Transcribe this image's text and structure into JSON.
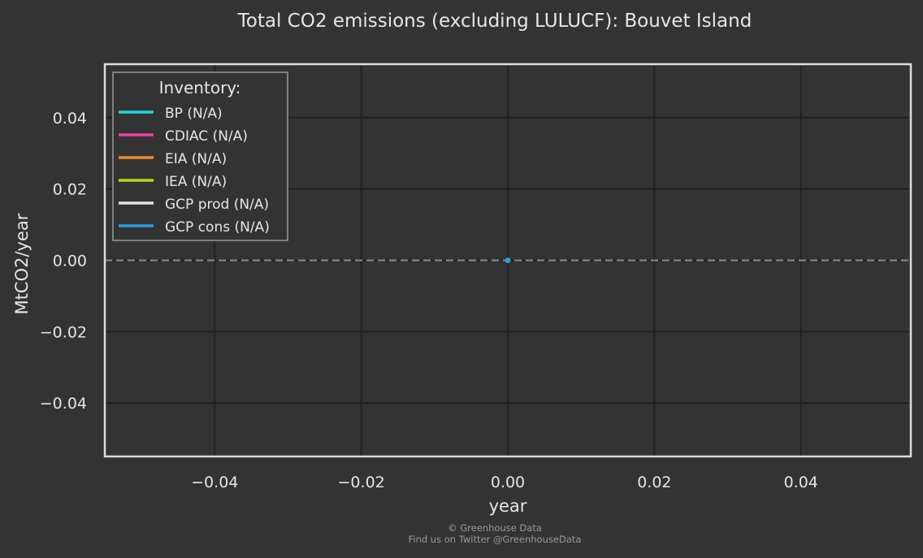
{
  "chart_data": {
    "type": "line",
    "title": "Total CO2 emissions (excluding LULUCF): Bouvet Island",
    "xlabel": "year",
    "ylabel": "MtCO2/year",
    "xlim": [
      -0.055,
      0.055
    ],
    "ylim": [
      -0.055,
      0.055
    ],
    "x_ticks": [
      -0.04,
      -0.02,
      0.0,
      0.02,
      0.04
    ],
    "x_tick_labels": [
      "−0.04",
      "−0.02",
      "0.00",
      "0.02",
      "0.04"
    ],
    "y_ticks": [
      0.04,
      0.02,
      0.0,
      -0.02,
      -0.04
    ],
    "y_tick_labels": [
      "0.04",
      "0.02",
      "0.00",
      "−0.02",
      "−0.04"
    ],
    "grid": true,
    "reference_line": {
      "y": 0,
      "style": "dashed",
      "color": "#8a8a8a"
    },
    "legend": {
      "title": "Inventory:",
      "placement": "top-left",
      "entries": [
        {
          "label": "BP (N/A)",
          "color": "#1fd5e0"
        },
        {
          "label": "CDIAC (N/A)",
          "color": "#f03fa0"
        },
        {
          "label": "EIA (N/A)",
          "color": "#f08a2a"
        },
        {
          "label": "IEA (N/A)",
          "color": "#b5d624"
        },
        {
          "label": "GCP prod (N/A)",
          "color": "#e6e6e6"
        },
        {
          "label": "GCP cons (N/A)",
          "color": "#2a9ee0"
        }
      ]
    },
    "series": [
      {
        "x": [
          0
        ],
        "y": [
          0
        ],
        "color": "#2a9ee0"
      }
    ]
  },
  "footer": {
    "line1": "© Greenhouse Data",
    "line2": "Find us on Twitter @GreenhouseData"
  },
  "colors": {
    "background": "#333333",
    "frame": "#dddddd",
    "grid": "#222222"
  }
}
